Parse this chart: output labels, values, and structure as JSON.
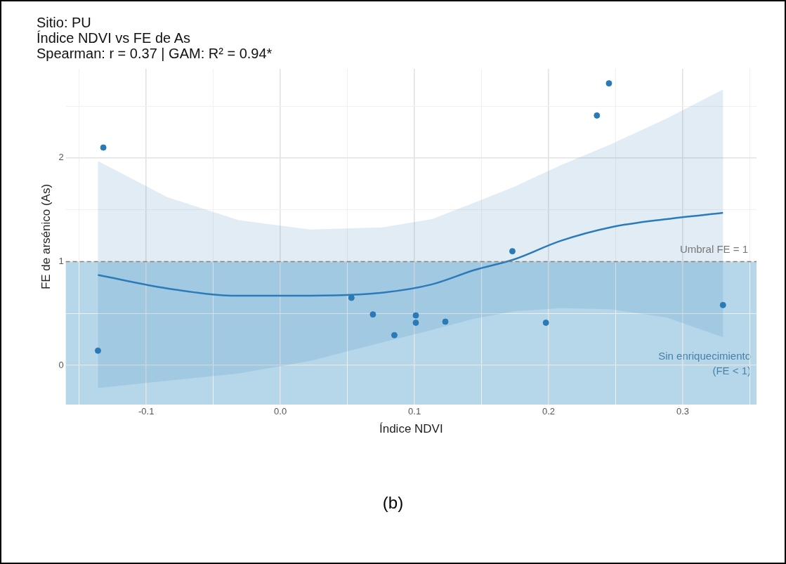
{
  "chart_data": {
    "type": "scatter",
    "title": "Sitio: PU",
    "subtitle": "Índice NDVI vs FE de As\nSpearman: r = 0.37 | GAM: R² = 0.94*",
    "xlabel": "Índice NDVI",
    "ylabel": "FE de arsénico (As)",
    "xlim": [
      -0.16,
      0.355
    ],
    "ylim": [
      -0.38,
      2.86
    ],
    "xticks": [
      {
        "value": -0.15,
        "label": null
      },
      -0.1,
      {
        "value": -0.05,
        "label": null
      },
      {
        "value": 0,
        "label": "0.0"
      },
      {
        "value": 0.05,
        "label": null
      },
      0.1,
      {
        "value": 0.15,
        "label": null
      },
      0.2,
      {
        "value": 0.25,
        "label": null
      },
      0.3,
      {
        "value": 0.35,
        "label": null
      }
    ],
    "yticks": [
      0,
      {
        "value": 0.5,
        "label": null
      },
      1,
      {
        "value": 1.5,
        "label": null
      },
      2,
      {
        "value": 2.5,
        "label": null
      }
    ],
    "grid": true,
    "marker": "circle",
    "series": [
      {
        "color": "#2a7ab8",
        "x": [
          -0.132,
          -0.136,
          0.053,
          0.069,
          0.085,
          0.101,
          0.101,
          0.123,
          0.173,
          0.198,
          0.236,
          0.245,
          0.33
        ],
        "values": [
          2.1,
          0.14,
          0.65,
          0.49,
          0.29,
          0.48,
          0.41,
          0.42,
          1.1,
          0.41,
          2.41,
          2.72,
          0.58
        ]
      },
      {
        "type": "line",
        "marker": "none",
        "color": "#2b7bba",
        "x": [
          -0.136,
          -0.084,
          -0.031,
          0.022,
          0.076,
          0.113,
          0.145,
          0.174,
          0.209,
          0.246,
          0.288,
          0.33
        ],
        "values": [
          0.87,
          0.74,
          0.67,
          0.67,
          0.7,
          0.78,
          0.92,
          1.02,
          1.2,
          1.33,
          1.41,
          1.47
        ],
        "lower": [
          -0.22,
          -0.15,
          -0.08,
          0.04,
          0.22,
          0.34,
          0.45,
          0.52,
          0.55,
          0.54,
          0.46,
          0.27
        ],
        "upper": [
          1.97,
          1.62,
          1.4,
          1.31,
          1.33,
          1.41,
          1.57,
          1.72,
          1.93,
          2.13,
          2.38,
          2.66
        ]
      }
    ],
    "ref_lines": [
      {
        "axis": "y",
        "value": 1,
        "label": "Umbral FE = 1",
        "color": "#808080",
        "line_style": "dashed"
      }
    ],
    "bands": [
      {
        "axis": "y",
        "from": -0.38,
        "to": 1,
        "label": "Sin enriquecimiento\n(FE < 1)",
        "color": "#9ecae1"
      }
    ],
    "annotations": [
      "(b)"
    ]
  }
}
